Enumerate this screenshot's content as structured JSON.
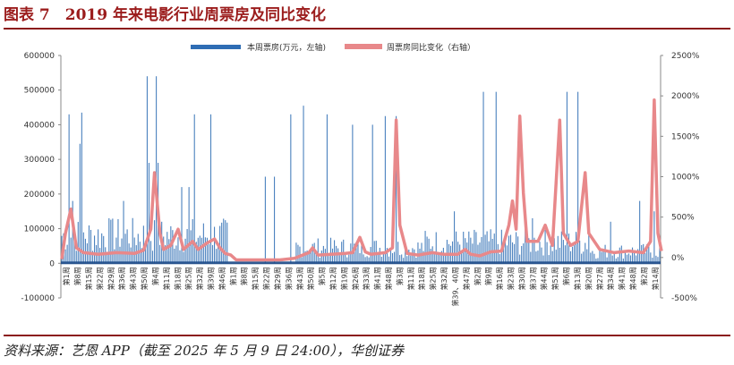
{
  "figure": {
    "title": "图表 7　2019 年来电影行业周票房及同比变化",
    "source": "资料来源：艺恩 APP（截至 2025 年 5 月 9 日 24:00），华创证券",
    "colors": {
      "title": "#9b1c1c",
      "rule": "#8b1a1a",
      "bar": "#2e6db4",
      "line": "#e8888a"
    }
  },
  "chart_data": {
    "type": "bar+line",
    "title": "",
    "xlabel": "",
    "ylabel_left": "",
    "ylabel_right": "",
    "legend": {
      "placement": "top-center",
      "entries": [
        "本周票房(万元，左轴)",
        "周票房同比变化（右轴）"
      ]
    },
    "y_left": {
      "min": -100000,
      "max": 600000,
      "ticks": [
        600000,
        500000,
        400000,
        300000,
        200000,
        100000,
        0,
        -100000
      ]
    },
    "y_right": {
      "min": -500,
      "max": 2500,
      "ticks": [
        "2500%",
        "2000%",
        "1500%",
        "1000%",
        "500%",
        "0%",
        "-500%"
      ],
      "values": [
        2500,
        2000,
        1500,
        1000,
        500,
        0,
        -500
      ]
    },
    "x_tick_labels": [
      "第1周",
      "第8周",
      "第15周",
      "第22周",
      "第29周",
      "第36周",
      "第43周",
      "第50周",
      "第4周",
      "第11周",
      "第18周",
      "第25周",
      "第32周",
      "第39周",
      "第46周",
      "第1周",
      "第8周",
      "第15周",
      "第22周",
      "第29周",
      "第36周",
      "第43周",
      "第50周",
      "第5周",
      "第12周",
      "第19周",
      "第26周",
      "第33周",
      "第41周",
      "第48周",
      "第3周",
      "第11周",
      "第18周",
      "第25周",
      "第32周",
      "第39、40周",
      "第47周",
      "第2周",
      "第9周",
      "第16周",
      "第23周",
      "第30周",
      "第37周",
      "第44周",
      "第51周",
      "第6周",
      "第13周",
      "第20周",
      "第27周",
      "第34周",
      "第41周",
      "第48周",
      "第2周",
      "第14周"
    ],
    "weeks_total": 330,
    "series": [
      {
        "name": "本周票房(万元，左轴)",
        "axis": "left",
        "type": "bar",
        "peaks": [
          {
            "week": 4,
            "value": 430000
          },
          {
            "week": 6,
            "value": 180000
          },
          {
            "week": 10,
            "value": 345000
          },
          {
            "week": 11,
            "value": 435000
          },
          {
            "week": 26,
            "value": 130000
          },
          {
            "week": 34,
            "value": 180000
          },
          {
            "week": 47,
            "value": 540000
          },
          {
            "week": 48,
            "value": 290000
          },
          {
            "week": 52,
            "value": 540000
          },
          {
            "week": 53,
            "value": 290000
          },
          {
            "week": 66,
            "value": 220000
          },
          {
            "week": 70,
            "value": 220000
          },
          {
            "week": 73,
            "value": 430000
          },
          {
            "week": 82,
            "value": 430000
          },
          {
            "week": 112,
            "value": 250000
          },
          {
            "week": 117,
            "value": 250000
          },
          {
            "week": 126,
            "value": 430000
          },
          {
            "week": 133,
            "value": 455000
          },
          {
            "week": 146,
            "value": 430000
          },
          {
            "week": 160,
            "value": 400000
          },
          {
            "week": 171,
            "value": 400000
          },
          {
            "week": 178,
            "value": 425000
          },
          {
            "week": 184,
            "value": 425000
          },
          {
            "week": 216,
            "value": 150000
          },
          {
            "week": 232,
            "value": 495000
          },
          {
            "week": 239,
            "value": 495000
          },
          {
            "week": 255,
            "value": 100000
          },
          {
            "week": 259,
            "value": 130000
          },
          {
            "week": 278,
            "value": 495000
          },
          {
            "week": 284,
            "value": 495000
          },
          {
            "week": 290,
            "value": 130000
          },
          {
            "week": 302,
            "value": 120000
          },
          {
            "week": 318,
            "value": 180000
          },
          {
            "week": 326,
            "value": 150000
          }
        ]
      },
      {
        "name": "周票房同比变化（右轴）",
        "axis": "right",
        "type": "line",
        "points": [
          [
            0,
            -20
          ],
          [
            2,
            300
          ],
          [
            5,
            600
          ],
          [
            8,
            120
          ],
          [
            12,
            60
          ],
          [
            20,
            40
          ],
          [
            30,
            60
          ],
          [
            40,
            50
          ],
          [
            45,
            90
          ],
          [
            49,
            350
          ],
          [
            51,
            1050
          ],
          [
            54,
            300
          ],
          [
            56,
            100
          ],
          [
            60,
            150
          ],
          [
            64,
            350
          ],
          [
            67,
            100
          ],
          [
            72,
            200
          ],
          [
            75,
            100
          ],
          [
            80,
            180
          ],
          [
            84,
            230
          ],
          [
            87,
            120
          ],
          [
            90,
            50
          ],
          [
            93,
            30
          ],
          [
            96,
            -30
          ],
          [
            100,
            -30
          ],
          [
            120,
            -30
          ],
          [
            128,
            -10
          ],
          [
            136,
            60
          ],
          [
            138,
            120
          ],
          [
            141,
            30
          ],
          [
            148,
            40
          ],
          [
            156,
            50
          ],
          [
            160,
            60
          ],
          [
            164,
            250
          ],
          [
            167,
            70
          ],
          [
            170,
            40
          ],
          [
            178,
            60
          ],
          [
            182,
            120
          ],
          [
            184,
            1700
          ],
          [
            186,
            400
          ],
          [
            190,
            50
          ],
          [
            196,
            30
          ],
          [
            204,
            60
          ],
          [
            210,
            40
          ],
          [
            218,
            40
          ],
          [
            222,
            100
          ],
          [
            225,
            40
          ],
          [
            230,
            20
          ],
          [
            236,
            70
          ],
          [
            242,
            80
          ],
          [
            246,
            400
          ],
          [
            248,
            700
          ],
          [
            250,
            350
          ],
          [
            252,
            1750
          ],
          [
            254,
            800
          ],
          [
            256,
            200
          ],
          [
            262,
            200
          ],
          [
            266,
            400
          ],
          [
            270,
            150
          ],
          [
            274,
            1700
          ],
          [
            276,
            300
          ],
          [
            280,
            150
          ],
          [
            284,
            200
          ],
          [
            288,
            1050
          ],
          [
            290,
            300
          ],
          [
            296,
            100
          ],
          [
            304,
            60
          ],
          [
            312,
            80
          ],
          [
            320,
            60
          ],
          [
            324,
            200
          ],
          [
            326,
            1950
          ],
          [
            328,
            300
          ],
          [
            330,
            80
          ]
        ]
      }
    ]
  }
}
